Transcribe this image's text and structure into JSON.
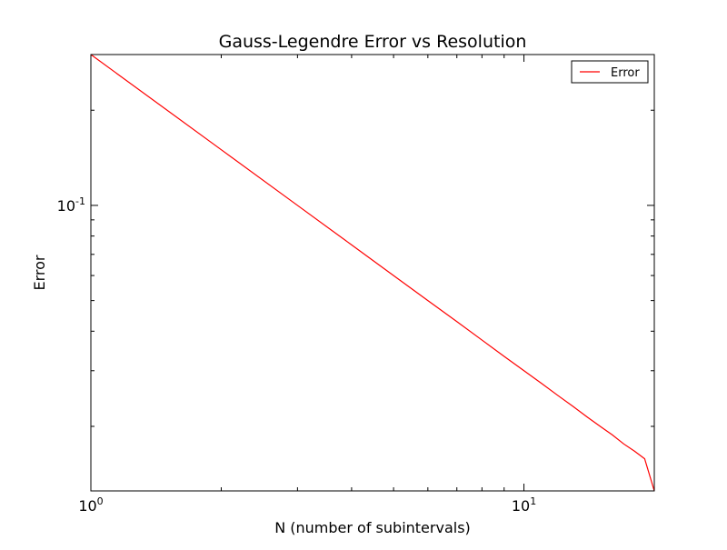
{
  "chart_data": {
    "type": "line",
    "title": "Gauss-Legendre Error vs Resolution",
    "xlabel": "N (number of subintervals)",
    "ylabel": "Error",
    "xscale": "log",
    "yscale": "log",
    "xlim": [
      1,
      20
    ],
    "ylim": [
      0.0125,
      0.3
    ],
    "grid": false,
    "legend_position": "top-right",
    "x_ticks": [
      {
        "value": 1,
        "base": "10",
        "exp": "0"
      },
      {
        "value": 10,
        "base": "10",
        "exp": "1"
      }
    ],
    "y_ticks": [
      {
        "value": 0.1,
        "base": "10",
        "exp": "-1"
      }
    ],
    "series": [
      {
        "name": "Error",
        "color": "#ff0000",
        "x": [
          1,
          2,
          3,
          4,
          5,
          6,
          7,
          8,
          9,
          10,
          11,
          12,
          13,
          14,
          15,
          16,
          17,
          18,
          19,
          20
        ],
        "y": [
          0.3,
          0.15,
          0.1,
          0.075,
          0.06,
          0.05,
          0.0429,
          0.0375,
          0.0333,
          0.03,
          0.0273,
          0.025,
          0.0231,
          0.0214,
          0.02,
          0.0188,
          0.0176,
          0.0167,
          0.0158,
          0.0125
        ]
      }
    ]
  }
}
